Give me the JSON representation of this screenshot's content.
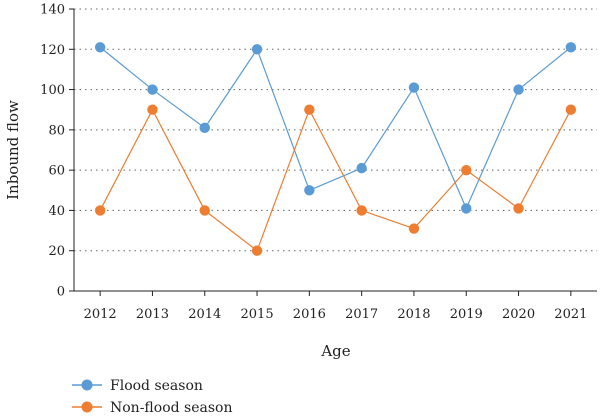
{
  "chart_data": {
    "type": "line",
    "xlabel": "Age",
    "ylabel": "Inbound flow",
    "categories": [
      "2012",
      "2013",
      "2014",
      "2015",
      "2016",
      "2017",
      "2018",
      "2019",
      "2020",
      "2021"
    ],
    "ylim": [
      0,
      140
    ],
    "yticks": [
      0,
      20,
      40,
      60,
      80,
      100,
      120,
      140
    ],
    "grid": "horizontal dotted",
    "legend_position": "bottom-left",
    "series": [
      {
        "name": "Flood season",
        "color": "#5B9BD5",
        "values": [
          121,
          100,
          81,
          120,
          50,
          61,
          101,
          41,
          100,
          121
        ]
      },
      {
        "name": "Non-flood season",
        "color": "#ED7D31",
        "values": [
          40,
          90,
          40,
          20,
          90,
          40,
          31,
          60,
          41,
          90
        ]
      }
    ]
  }
}
